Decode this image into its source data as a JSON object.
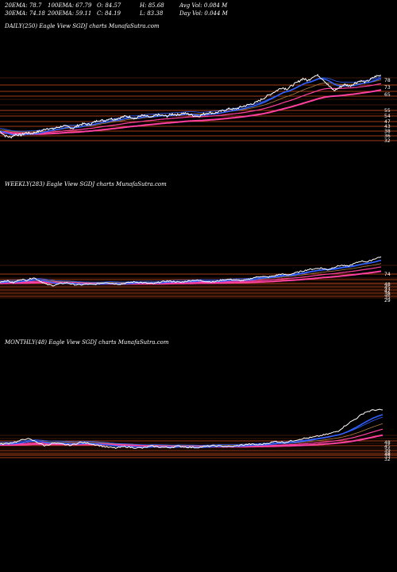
{
  "header": {
    "ema20": "20EMA: 78.7",
    "ema100": "100EMA: 67.79",
    "open": "O: 84.57",
    "high": "H: 85.68",
    "avg_vol": "Avg Vol: 0.084  M",
    "ema30": "30EMA: 74.18",
    "ema200": "200EMA: 59.11",
    "close": "C: 84.19",
    "low": "L: 83.38",
    "day_vol": "Day Vol: 0.044  M"
  },
  "colors": {
    "price": "#ffffff",
    "ema_fast": "#3060ff",
    "ema_slow": "#ff40a0",
    "ema_mid": "#b08040",
    "grid": "#d4501e"
  },
  "chart_data": [
    {
      "type": "line",
      "title": "DAILY(250) Eagle  View  SGDJ charts MunafaSutra.com",
      "grid": true,
      "tick_labels": [
        "78",
        "73",
        "65",
        "55",
        "54",
        "47",
        "43",
        "38",
        "36",
        "32"
      ],
      "price_profile": [
        0.26,
        0.2,
        0.18,
        0.22,
        0.21,
        0.24,
        0.23,
        0.25,
        0.27,
        0.3,
        0.29,
        0.31,
        0.33,
        0.32,
        0.3,
        0.34,
        0.36,
        0.35,
        0.38,
        0.41,
        0.4,
        0.43,
        0.42,
        0.44,
        0.46,
        0.45,
        0.43,
        0.47,
        0.46,
        0.44,
        0.48,
        0.47,
        0.46,
        0.49,
        0.48,
        0.5,
        0.49,
        0.47,
        0.46,
        0.49,
        0.51,
        0.5,
        0.52,
        0.54,
        0.56,
        0.55,
        0.58,
        0.6,
        0.62,
        0.64,
        0.68,
        0.72,
        0.76,
        0.8,
        0.84,
        0.82,
        0.87,
        0.91,
        0.96,
        0.93,
        0.99,
        1.0,
        0.94,
        0.86,
        0.8,
        0.84,
        0.88,
        0.86,
        0.9,
        0.93,
        0.91,
        0.95,
        0.99,
        1.0
      ]
    },
    {
      "type": "line",
      "title": "WEEKLY(283) Eagle  View  SGDJ charts MunafaSutra.com",
      "grid": true,
      "tick_labels": [
        "74",
        "48",
        "45",
        "42",
        "38",
        "35",
        "29"
      ],
      "price_profile": [
        0.42,
        0.45,
        0.4,
        0.48,
        0.46,
        0.52,
        0.44,
        0.36,
        0.34,
        0.38,
        0.4,
        0.36,
        0.35,
        0.37,
        0.36,
        0.39,
        0.41,
        0.38,
        0.37,
        0.4,
        0.42,
        0.41,
        0.39,
        0.38,
        0.42,
        0.44,
        0.43,
        0.41,
        0.44,
        0.46,
        0.45,
        0.43,
        0.42,
        0.46,
        0.48,
        0.47,
        0.45,
        0.47,
        0.52,
        0.55,
        0.53,
        0.56,
        0.6,
        0.58,
        0.62,
        0.66,
        0.7,
        0.72,
        0.74,
        0.7,
        0.76,
        0.8,
        0.78,
        0.84,
        0.9,
        0.88,
        0.95,
        1.0
      ]
    },
    {
      "type": "line",
      "title": "MONTHLY(48) Eagle  View  SGDJ charts MunafaSutra.com",
      "grid": true,
      "tick_labels": [
        "48",
        "45",
        "39",
        "38",
        "35",
        "32"
      ],
      "price_profile": [
        0.28,
        0.3,
        0.34,
        0.4,
        0.34,
        0.25,
        0.3,
        0.28,
        0.26,
        0.32,
        0.3,
        0.26,
        0.22,
        0.2,
        0.23,
        0.21,
        0.2,
        0.24,
        0.22,
        0.21,
        0.24,
        0.22,
        0.21,
        0.23,
        0.25,
        0.24,
        0.23,
        0.26,
        0.28,
        0.27,
        0.3,
        0.34,
        0.32,
        0.36,
        0.4,
        0.42,
        0.46,
        0.5,
        0.56,
        0.7,
        0.82,
        0.95,
        1.0,
        1.0
      ]
    }
  ]
}
